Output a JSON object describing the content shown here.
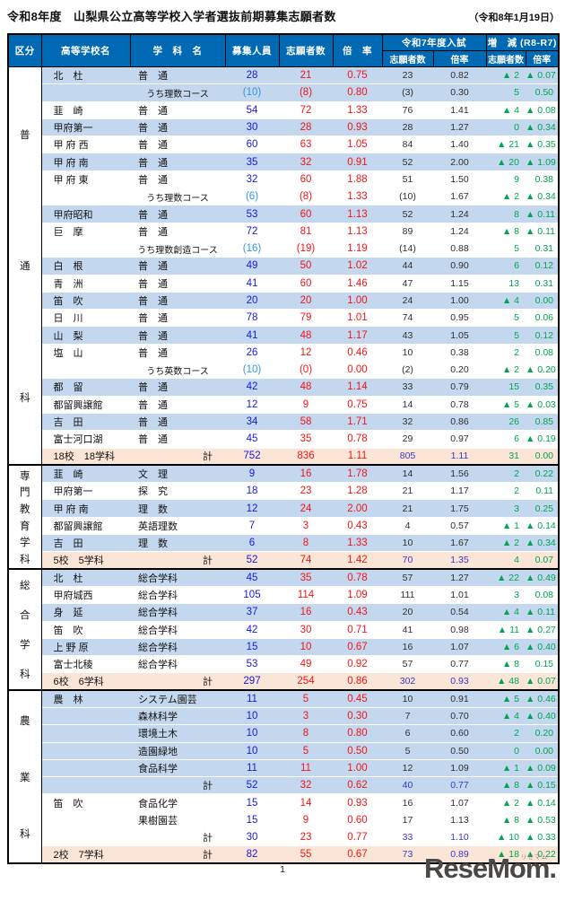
{
  "title": "令和8年度　山梨県公立高等学校入学者選抜前期募集志願者数",
  "date": "（令和8年1月19日）",
  "page_number": "1",
  "logo": {
    "text": "ReseMom.",
    "kana": "リセマム"
  },
  "colors": {
    "header_bg": "#0069b4",
    "row_blue": "#c3d7ef",
    "row_total_orange": "#fbe5d6",
    "capacity_blue": "#1717e0",
    "course_capacity_blue": "#2f95e8",
    "applicants_red": "#f51515",
    "diff_green": "#00a551",
    "total_prev_blue": "#3838c8"
  },
  "table": {
    "header": {
      "kubun": "区分",
      "school": "高等学校名",
      "dept": "学　科　名",
      "capacity": "募集人員",
      "applicants": "志願者数",
      "ratio": "倍　率",
      "prev_group": "令和7年度入試",
      "diff_group": "増　減 (R8-R7)",
      "prev_sub_applicants": "志願者数",
      "prev_sub_ratio": "倍率",
      "diff_sub_applicants": "志願者数",
      "diff_sub_ratio": "倍率"
    },
    "sections": [
      {
        "id": "futsuka",
        "kubun": "普通科",
        "rows": [
          {
            "school": "北　杜",
            "dept": "普　通",
            "cap": "28",
            "app": "21",
            "rate": "0.75",
            "p_app": "23",
            "p_rate": "0.82",
            "d_app": "▲ 2",
            "d_rate": "▲ 0.07",
            "bg": "b",
            "type": "n"
          },
          {
            "school": "",
            "dept": "うち理数コース",
            "cap": "(10)",
            "app": "(8)",
            "rate": "0.80",
            "p_app": "(3)",
            "p_rate": "0.30",
            "d_app": "5",
            "d_rate": "0.50",
            "bg": "b",
            "type": "c"
          },
          {
            "school": "韮　崎",
            "dept": "普　通",
            "cap": "54",
            "app": "72",
            "rate": "1.33",
            "p_app": "76",
            "p_rate": "1.41",
            "d_app": "▲ 4",
            "d_rate": "▲ 0.08",
            "bg": "w",
            "type": "n"
          },
          {
            "school": "甲府第一",
            "dept": "普　通",
            "cap": "30",
            "app": "28",
            "rate": "0.93",
            "p_app": "28",
            "p_rate": "1.27",
            "d_app": "0",
            "d_rate": "▲ 0.34",
            "bg": "b",
            "type": "n"
          },
          {
            "school": "甲 府 西",
            "dept": "普　通",
            "cap": "60",
            "app": "63",
            "rate": "1.05",
            "p_app": "84",
            "p_rate": "1.40",
            "d_app": "▲ 21",
            "d_rate": "▲ 0.35",
            "bg": "w",
            "type": "n"
          },
          {
            "school": "甲 府 南",
            "dept": "普　通",
            "cap": "35",
            "app": "32",
            "rate": "0.91",
            "p_app": "52",
            "p_rate": "2.00",
            "d_app": "▲ 20",
            "d_rate": "▲ 1.09",
            "bg": "b",
            "type": "n"
          },
          {
            "school": "甲 府 東",
            "dept": "普　通",
            "cap": "32",
            "app": "60",
            "rate": "1.88",
            "p_app": "51",
            "p_rate": "1.50",
            "d_app": "9",
            "d_rate": "0.38",
            "bg": "w",
            "type": "n"
          },
          {
            "school": "",
            "dept": "うち理数コース",
            "cap": "(6)",
            "app": "(8)",
            "rate": "1.33",
            "p_app": "(10)",
            "p_rate": "1.67",
            "d_app": "▲ 2",
            "d_rate": "▲ 0.34",
            "bg": "w",
            "type": "c"
          },
          {
            "school": "甲府昭和",
            "dept": "普　通",
            "cap": "53",
            "app": "60",
            "rate": "1.13",
            "p_app": "52",
            "p_rate": "1.24",
            "d_app": "8",
            "d_rate": "▲ 0.11",
            "bg": "b",
            "type": "n"
          },
          {
            "school": "巨　摩",
            "dept": "普　通",
            "cap": "72",
            "app": "81",
            "rate": "1.13",
            "p_app": "89",
            "p_rate": "1.24",
            "d_app": "▲ 8",
            "d_rate": "▲ 0.11",
            "bg": "w",
            "type": "n"
          },
          {
            "school": "",
            "dept": "うち理数創造コース",
            "cap": "(16)",
            "app": "(19)",
            "rate": "1.19",
            "p_app": "(14)",
            "p_rate": "0.88",
            "d_app": "5",
            "d_rate": "0.31",
            "bg": "w",
            "type": "c"
          },
          {
            "school": "白　根",
            "dept": "普　通",
            "cap": "49",
            "app": "50",
            "rate": "1.02",
            "p_app": "44",
            "p_rate": "0.90",
            "d_app": "6",
            "d_rate": "0.12",
            "bg": "b",
            "type": "n"
          },
          {
            "school": "青　洲",
            "dept": "普　通",
            "cap": "41",
            "app": "60",
            "rate": "1.46",
            "p_app": "47",
            "p_rate": "1.15",
            "d_app": "13",
            "d_rate": "0.31",
            "bg": "w",
            "type": "n"
          },
          {
            "school": "笛　吹",
            "dept": "普　通",
            "cap": "20",
            "app": "20",
            "rate": "1.00",
            "p_app": "24",
            "p_rate": "1.00",
            "d_app": "▲ 4",
            "d_rate": "0.00",
            "bg": "b",
            "type": "n"
          },
          {
            "school": "日　川",
            "dept": "普　通",
            "cap": "78",
            "app": "79",
            "rate": "1.01",
            "p_app": "74",
            "p_rate": "0.95",
            "d_app": "5",
            "d_rate": "0.06",
            "bg": "w",
            "type": "n"
          },
          {
            "school": "山　梨",
            "dept": "普　通",
            "cap": "41",
            "app": "48",
            "rate": "1.17",
            "p_app": "43",
            "p_rate": "1.05",
            "d_app": "5",
            "d_rate": "0.12",
            "bg": "b",
            "type": "n"
          },
          {
            "school": "塩　山",
            "dept": "普　通",
            "cap": "26",
            "app": "12",
            "rate": "0.46",
            "p_app": "10",
            "p_rate": "0.38",
            "d_app": "2",
            "d_rate": "0.08",
            "bg": "w",
            "type": "n"
          },
          {
            "school": "",
            "dept": "うち英数コース",
            "cap": "(10)",
            "app": "(0)",
            "rate": "0.00",
            "p_app": "(2)",
            "p_rate": "0.20",
            "d_app": "▲ 2",
            "d_rate": "▲ 0.20",
            "bg": "w",
            "type": "c"
          },
          {
            "school": "都　留",
            "dept": "普　通",
            "cap": "42",
            "app": "48",
            "rate": "1.14",
            "p_app": "33",
            "p_rate": "0.79",
            "d_app": "15",
            "d_rate": "0.35",
            "bg": "b",
            "type": "n"
          },
          {
            "school": "都留興譲館",
            "dept": "普　通",
            "cap": "12",
            "app": "9",
            "rate": "0.75",
            "p_app": "14",
            "p_rate": "0.78",
            "d_app": "▲ 5",
            "d_rate": "▲ 0.03",
            "bg": "w",
            "type": "n"
          },
          {
            "school": "吉　田",
            "dept": "普　通",
            "cap": "34",
            "app": "58",
            "rate": "1.71",
            "p_app": "32",
            "p_rate": "0.86",
            "d_app": "26",
            "d_rate": "0.85",
            "bg": "b",
            "type": "n"
          },
          {
            "school": "富士河口湖",
            "dept": "普　通",
            "cap": "45",
            "app": "35",
            "rate": "0.78",
            "p_app": "29",
            "p_rate": "0.97",
            "d_app": "6",
            "d_rate": "▲ 0.19",
            "bg": "w",
            "type": "n"
          },
          {
            "school": "18校　18学科",
            "dept": "計",
            "cap": "752",
            "app": "836",
            "rate": "1.11",
            "p_app": "805",
            "p_rate": "1.11",
            "d_app": "31",
            "d_rate": "0.00",
            "bg": "o",
            "type": "t"
          }
        ]
      },
      {
        "id": "senmon",
        "kubun": "専門教育学科",
        "rows": [
          {
            "school": "韮　崎",
            "dept": "文　理",
            "cap": "9",
            "app": "16",
            "rate": "1.78",
            "p_app": "14",
            "p_rate": "1.56",
            "d_app": "2",
            "d_rate": "0.22",
            "bg": "b",
            "type": "n"
          },
          {
            "school": "甲府第一",
            "dept": "探　究",
            "cap": "18",
            "app": "23",
            "rate": "1.28",
            "p_app": "21",
            "p_rate": "1.17",
            "d_app": "2",
            "d_rate": "0.11",
            "bg": "w",
            "type": "n"
          },
          {
            "school": "甲 府 南",
            "dept": "理　数",
            "cap": "12",
            "app": "24",
            "rate": "2.00",
            "p_app": "21",
            "p_rate": "1.75",
            "d_app": "3",
            "d_rate": "0.25",
            "bg": "b",
            "type": "n"
          },
          {
            "school": "都留興譲館",
            "dept": "英語理数",
            "cap": "7",
            "app": "3",
            "rate": "0.43",
            "p_app": "4",
            "p_rate": "0.57",
            "d_app": "▲ 1",
            "d_rate": "▲ 0.14",
            "bg": "w",
            "type": "n"
          },
          {
            "school": "吉　田",
            "dept": "理　数",
            "cap": "6",
            "app": "8",
            "rate": "1.33",
            "p_app": "10",
            "p_rate": "1.67",
            "d_app": "▲ 2",
            "d_rate": "▲ 0.34",
            "bg": "b",
            "type": "n"
          },
          {
            "school": "5校　5学科",
            "dept": "計",
            "cap": "52",
            "app": "74",
            "rate": "1.42",
            "p_app": "70",
            "p_rate": "1.35",
            "d_app": "4",
            "d_rate": "0.07",
            "bg": "o",
            "type": "t"
          }
        ]
      },
      {
        "id": "sogo",
        "kubun": "総合学科",
        "rows": [
          {
            "school": "北　杜",
            "dept": "総合学科",
            "cap": "45",
            "app": "35",
            "rate": "0.78",
            "p_app": "57",
            "p_rate": "1.27",
            "d_app": "▲ 22",
            "d_rate": "▲ 0.49",
            "bg": "b",
            "type": "n"
          },
          {
            "school": "甲府城西",
            "dept": "総合学科",
            "cap": "105",
            "app": "114",
            "rate": "1.09",
            "p_app": "111",
            "p_rate": "1.01",
            "d_app": "3",
            "d_rate": "0.08",
            "bg": "w",
            "type": "n"
          },
          {
            "school": "身　延",
            "dept": "総合学科",
            "cap": "37",
            "app": "16",
            "rate": "0.43",
            "p_app": "20",
            "p_rate": "0.54",
            "d_app": "▲ 4",
            "d_rate": "▲ 0.11",
            "bg": "b",
            "type": "n"
          },
          {
            "school": "笛　吹",
            "dept": "総合学科",
            "cap": "42",
            "app": "30",
            "rate": "0.71",
            "p_app": "41",
            "p_rate": "0.98",
            "d_app": "▲ 11",
            "d_rate": "▲ 0.27",
            "bg": "w",
            "type": "n"
          },
          {
            "school": "上 野 原",
            "dept": "総合学科",
            "cap": "15",
            "app": "10",
            "rate": "0.67",
            "p_app": "16",
            "p_rate": "1.07",
            "d_app": "▲ 6",
            "d_rate": "▲ 0.40",
            "bg": "b",
            "type": "n"
          },
          {
            "school": "富士北稜",
            "dept": "総合学科",
            "cap": "53",
            "app": "49",
            "rate": "0.92",
            "p_app": "57",
            "p_rate": "0.77",
            "d_app": "▲ 8",
            "d_rate": "0.15",
            "bg": "w",
            "type": "n"
          },
          {
            "school": "6校　6学科",
            "dept": "計",
            "cap": "297",
            "app": "254",
            "rate": "0.86",
            "p_app": "302",
            "p_rate": "0.93",
            "d_app": "▲ 48",
            "d_rate": "▲ 0.07",
            "bg": "o",
            "type": "t"
          }
        ]
      },
      {
        "id": "nogyo",
        "kubun": "農業科",
        "rows": [
          {
            "school": "農　林",
            "dept": "システム園芸",
            "cap": "11",
            "app": "5",
            "rate": "0.45",
            "p_app": "10",
            "p_rate": "0.91",
            "d_app": "▲ 5",
            "d_rate": "▲ 0.46",
            "bg": "b",
            "type": "n"
          },
          {
            "school": "",
            "dept": "森林科学",
            "cap": "10",
            "app": "3",
            "rate": "0.30",
            "p_app": "7",
            "p_rate": "0.70",
            "d_app": "▲ 4",
            "d_rate": "▲ 0.40",
            "bg": "b",
            "type": "n"
          },
          {
            "school": "",
            "dept": "環境土木",
            "cap": "10",
            "app": "8",
            "rate": "0.80",
            "p_app": "6",
            "p_rate": "0.60",
            "d_app": "2",
            "d_rate": "0.20",
            "bg": "b",
            "type": "n"
          },
          {
            "school": "",
            "dept": "造園緑地",
            "cap": "10",
            "app": "5",
            "rate": "0.50",
            "p_app": "5",
            "p_rate": "0.50",
            "d_app": "0",
            "d_rate": "0.00",
            "bg": "b",
            "type": "n"
          },
          {
            "school": "",
            "dept": "食品科学",
            "cap": "11",
            "app": "11",
            "rate": "1.00",
            "p_app": "12",
            "p_rate": "1.09",
            "d_app": "▲ 1",
            "d_rate": "▲ 0.09",
            "bg": "b",
            "type": "n"
          },
          {
            "school": "",
            "dept": "計",
            "cap": "52",
            "app": "32",
            "rate": "0.62",
            "p_app": "40",
            "p_rate": "0.77",
            "d_app": "▲ 8",
            "d_rate": "▲ 0.15",
            "bg": "b",
            "type": "s"
          },
          {
            "school": "笛　吹",
            "dept": "食品化学",
            "cap": "15",
            "app": "14",
            "rate": "0.93",
            "p_app": "16",
            "p_rate": "1.07",
            "d_app": "▲ 2",
            "d_rate": "▲ 0.14",
            "bg": "w",
            "type": "n"
          },
          {
            "school": "",
            "dept": "果樹園芸",
            "cap": "15",
            "app": "9",
            "rate": "0.60",
            "p_app": "17",
            "p_rate": "1.13",
            "d_app": "▲ 8",
            "d_rate": "▲ 0.53",
            "bg": "w",
            "type": "n"
          },
          {
            "school": "",
            "dept": "計",
            "cap": "30",
            "app": "23",
            "rate": "0.77",
            "p_app": "33",
            "p_rate": "1.10",
            "d_app": "▲ 10",
            "d_rate": "▲ 0.33",
            "bg": "w",
            "type": "s"
          },
          {
            "school": "2校　7学科",
            "dept": "計",
            "cap": "82",
            "app": "55",
            "rate": "0.67",
            "p_app": "73",
            "p_rate": "0.89",
            "d_app": "▲ 18",
            "d_rate": "▲ 0.22",
            "bg": "o",
            "type": "t"
          }
        ]
      }
    ]
  }
}
